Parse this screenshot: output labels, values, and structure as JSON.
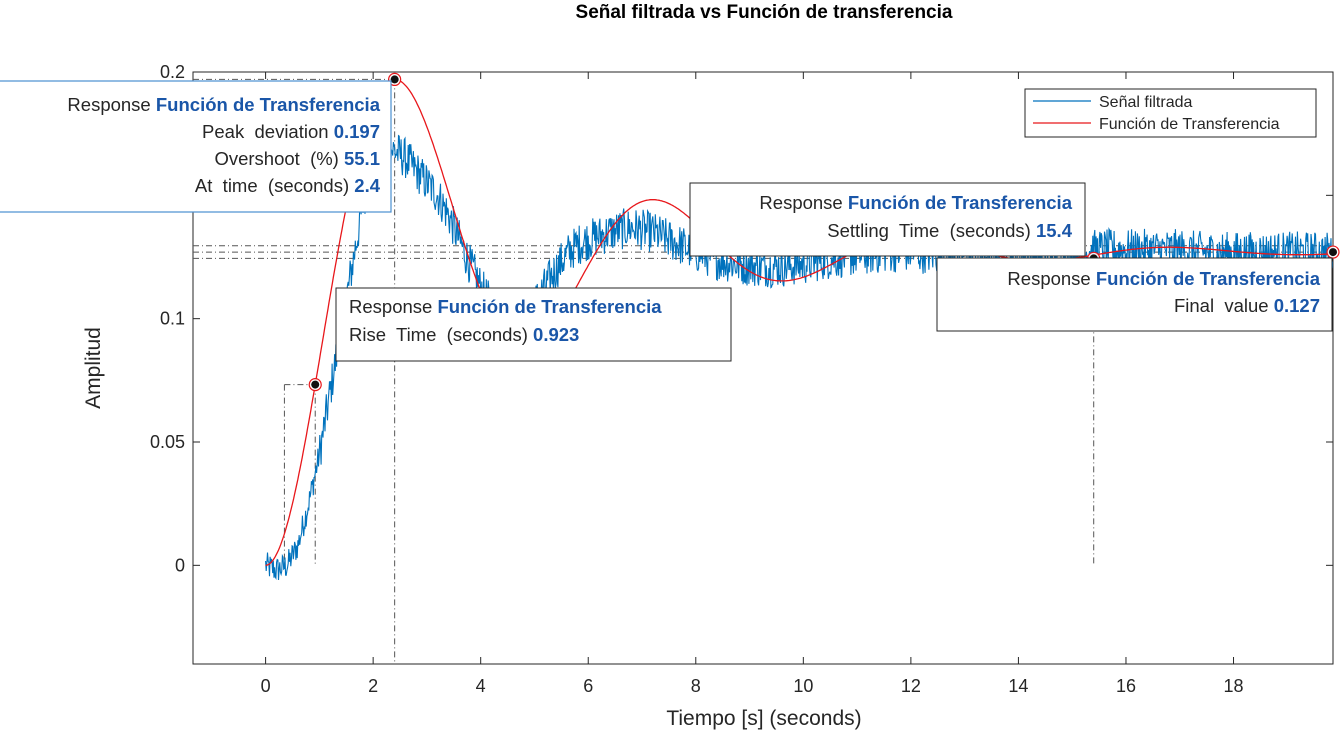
{
  "chart_data": {
    "type": "line",
    "title": "Señal filtrada vs Función de transferencia",
    "xlabel": "Tiempo [s] (seconds)",
    "ylabel": "Amplitud",
    "xlim": [
      -1.35,
      19.85
    ],
    "ylim": [
      -0.04,
      0.2
    ],
    "xticks": [
      0,
      2,
      4,
      6,
      8,
      10,
      12,
      14,
      16,
      18
    ],
    "yticks": [
      0,
      0.05,
      0.1,
      0.2
    ],
    "ytick_labels": [
      "0",
      "0.05",
      "0.1",
      "0.2"
    ],
    "grid": false,
    "legend_position": "top-right",
    "series": [
      {
        "name": "Señal filtrada",
        "color": "#0072bd",
        "x": [
          0,
          0.2,
          0.4,
          0.6,
          0.8,
          1.0,
          1.2,
          1.4,
          1.6,
          1.8,
          2.0,
          2.2,
          2.4,
          2.6,
          2.8,
          3.0,
          3.2,
          3.4,
          3.6,
          3.8,
          4.0,
          4.2,
          4.4,
          4.6,
          4.8,
          5.0,
          5.2,
          5.4,
          5.6,
          5.8,
          6.0,
          6.4,
          6.8,
          7.2,
          7.6,
          8.0,
          8.4,
          8.8,
          9.2,
          9.6,
          10.0,
          10.4,
          10.8,
          11.2,
          11.6,
          12.0,
          12.5,
          13.0,
          13.5,
          14.0,
          14.5,
          15.0,
          15.5,
          16.0,
          16.5,
          17.0,
          17.5,
          18.0,
          18.5,
          19.0,
          19.5,
          19.85
        ],
        "y": [
          0.0,
          -0.002,
          0.0,
          0.008,
          0.025,
          0.045,
          0.07,
          0.095,
          0.12,
          0.145,
          0.16,
          0.17,
          0.168,
          0.165,
          0.16,
          0.155,
          0.15,
          0.142,
          0.132,
          0.122,
          0.113,
          0.105,
          0.1,
          0.098,
          0.1,
          0.106,
          0.113,
          0.12,
          0.126,
          0.13,
          0.132,
          0.135,
          0.137,
          0.135,
          0.131,
          0.127,
          0.124,
          0.122,
          0.121,
          0.121,
          0.122,
          0.124,
          0.125,
          0.126,
          0.127,
          0.127,
          0.126,
          0.126,
          0.126,
          0.127,
          0.127,
          0.127,
          0.128,
          0.128,
          0.128,
          0.128,
          0.127,
          0.127,
          0.127,
          0.127,
          0.127,
          0.127
        ]
      },
      {
        "name": "Función de Transferencia",
        "color": "#e8171b"
      }
    ],
    "system": {
      "final_value": 0.127,
      "peak_deviation": 0.197,
      "peak_time": 2.4,
      "rise_time": 0.923,
      "settling_time": 15.4,
      "overshoot_pct": 55.1
    }
  },
  "datatips": {
    "peak": {
      "header_label": "Response",
      "header_value": "Función de Transferencia",
      "rows": [
        {
          "label": "Peak  deviation",
          "value": "0.197"
        },
        {
          "label": "Overshoot  (%)",
          "value": "55.1"
        },
        {
          "label": "At  time  (seconds)",
          "value": "2.4"
        }
      ]
    },
    "rise": {
      "header_label": "Response",
      "header_value": "Función de Transferencia",
      "rows": [
        {
          "label": "Rise  Time  (seconds)",
          "value": "0.923"
        }
      ]
    },
    "settling": {
      "header_label": "Response",
      "header_value": "Función de Transferencia",
      "rows": [
        {
          "label": "Settling  Time  (seconds)",
          "value": "15.4"
        }
      ]
    },
    "final": {
      "header_label": "Response",
      "header_value": "Función de Transferencia",
      "rows": [
        {
          "label": "Final  value",
          "value": "0.127"
        }
      ]
    }
  }
}
